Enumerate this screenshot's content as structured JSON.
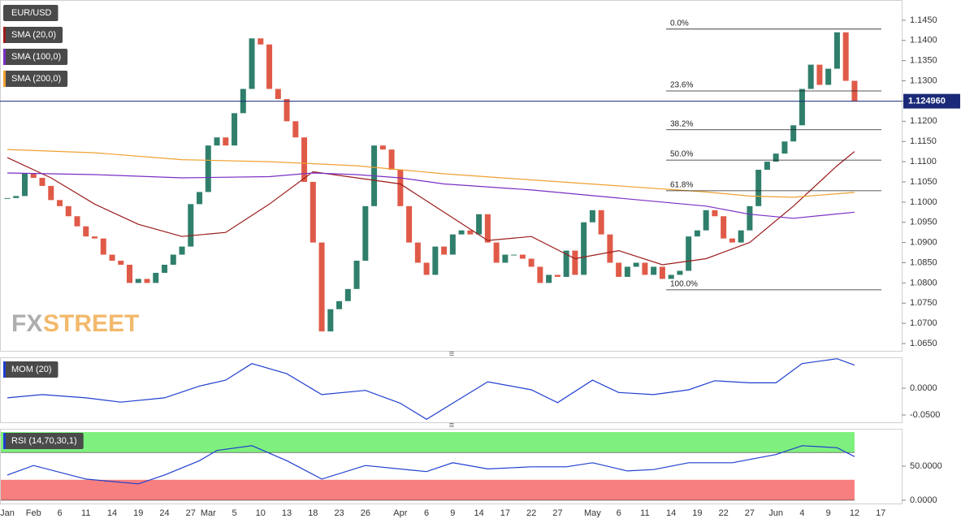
{
  "chart_data": [
    {
      "type": "candlestick",
      "categories": [
        "Jan",
        null,
        null,
        "Feb",
        null,
        null,
        "6",
        null,
        null,
        "11",
        null,
        null,
        "14",
        null,
        null,
        "19",
        null,
        null,
        "24",
        null,
        null,
        "27",
        null,
        "Mar",
        null,
        null,
        "5",
        null,
        null,
        "10",
        null,
        null,
        "13",
        null,
        null,
        "18",
        null,
        null,
        "23",
        null,
        null,
        "26",
        null,
        null,
        null,
        "Apr",
        null,
        null,
        "6",
        null,
        null,
        "9",
        null,
        null,
        "14",
        null,
        null,
        "17",
        null,
        null,
        "22",
        null,
        null,
        "27",
        null,
        null,
        null,
        "May",
        null,
        null,
        "6",
        null,
        null,
        "11",
        null,
        null,
        "14",
        null,
        null,
        "19",
        null,
        null,
        "22",
        null,
        null,
        "27",
        null,
        null,
        "Jun",
        null,
        null,
        "4",
        null,
        null,
        "9",
        null,
        null,
        "12",
        null,
        null,
        "17"
      ],
      "xlim": [
        -0.837,
        102.4
      ],
      "ylim": [
        1.0632,
        1.15
      ],
      "yticks": [
        {
          "value": 1.065,
          "label": "1.0650"
        },
        {
          "value": 1.07,
          "label": "1.0700"
        },
        {
          "value": 1.075,
          "label": "1.0750"
        },
        {
          "value": 1.08,
          "label": "1.0800"
        },
        {
          "value": 1.085,
          "label": "1.0850"
        },
        {
          "value": 1.09,
          "label": "1.0900"
        },
        {
          "value": 1.095,
          "label": "1.0950"
        },
        {
          "value": 1.1,
          "label": "1.1000"
        },
        {
          "value": 1.105,
          "label": "1.1050"
        },
        {
          "value": 1.11,
          "label": "1.1100"
        },
        {
          "value": 1.115,
          "label": "1.1150"
        },
        {
          "value": 1.12,
          "label": "1.1200"
        },
        {
          "value": 1.125,
          "label": "1.1250"
        },
        {
          "value": 1.13,
          "label": "1.1300"
        },
        {
          "value": 1.135,
          "label": "1.1350"
        },
        {
          "value": 1.14,
          "label": "1.1400"
        },
        {
          "value": 1.145,
          "label": "1.1450"
        }
      ],
      "series": [
        {
          "name": "EUR/USD",
          "up_color": "#2f7f6c",
          "down_color": "#e05a48",
          "values": [
            1.101,
            1.1015,
            1.107,
            1.106,
            1.104,
            1.1005,
            1.099,
            1.0965,
            1.094,
            1.0915,
            1.091,
            1.087,
            1.0855,
            1.0845,
            1.08,
            1.081,
            1.08,
            1.0825,
            1.0845,
            1.087,
            1.089,
            1.0995,
            1.1025,
            1.114,
            1.116,
            1.114,
            1.122,
            1.128,
            1.1405,
            1.139,
            1.128,
            1.1255,
            1.12,
            1.116,
            1.105,
            1.09,
            1.068,
            1.0735,
            1.0755,
            1.0785,
            1.0855,
            1.099,
            1.114,
            1.113,
            1.108,
            1.099,
            1.09,
            1.085,
            1.082,
            1.089,
            1.087,
            1.092,
            1.093,
            1.092,
            1.097,
            1.09,
            1.085,
            1.087,
            1.087,
            1.086,
            1.084,
            1.08,
            1.082,
            1.0815,
            1.088,
            1.082,
            1.095,
            1.098,
            1.092,
            1.085,
            1.0815,
            1.084,
            1.085,
            1.082,
            1.084,
            1.081,
            1.082,
            1.083,
            1.0915,
            1.093,
            1.098,
            1.0965,
            1.091,
            1.09,
            1.093,
            1.099,
            1.108,
            1.11,
            1.112,
            1.115,
            1.119,
            1.128,
            1.134,
            1.129,
            1.133,
            1.142,
            1.13,
            1.12496,
            null,
            null,
            null
          ]
        },
        {
          "name": "SMA (20,0)",
          "color": "#9b1c1c",
          "x": [
            0,
            5,
            10,
            15,
            20,
            25,
            30,
            35,
            40,
            45,
            50,
            55,
            60,
            65,
            70,
            75,
            80,
            85,
            90,
            95,
            97
          ],
          "values": [
            1.111,
            1.106,
            1.0995,
            1.0945,
            1.0915,
            1.0925,
            1.0995,
            1.1075,
            1.106,
            1.1045,
            1.0975,
            1.0905,
            1.0915,
            1.086,
            1.088,
            1.0845,
            1.086,
            1.09,
            1.099,
            1.109,
            1.1125
          ]
        },
        {
          "name": "SMA (100,0)",
          "color": "#7a2fc4",
          "x": [
            0,
            10,
            20,
            30,
            35,
            40,
            45,
            50,
            60,
            70,
            80,
            85,
            90,
            97
          ],
          "values": [
            1.1072,
            1.1068,
            1.106,
            1.1063,
            1.1072,
            1.1068,
            1.106,
            1.1045,
            1.103,
            1.101,
            1.099,
            1.097,
            1.096,
            1.0975
          ]
        },
        {
          "name": "SMA (200,0)",
          "color": "#f0a030",
          "x": [
            0,
            10,
            20,
            30,
            40,
            50,
            60,
            70,
            80,
            85,
            90,
            97
          ],
          "values": [
            1.113,
            1.1122,
            1.1105,
            1.11,
            1.109,
            1.107,
            1.1055,
            1.104,
            1.1025,
            1.1015,
            1.1012,
            1.1024
          ]
        }
      ],
      "fib_levels": [
        {
          "value": 1.1428,
          "label": "0.0%"
        },
        {
          "value": 1.1275,
          "label": "23.6%"
        },
        {
          "value": 1.1179,
          "label": "38.2%"
        },
        {
          "value": 1.1104,
          "label": "50.0%"
        },
        {
          "value": 1.1028,
          "label": "61.8%"
        },
        {
          "value": 1.0783,
          "label": "100.0%"
        }
      ],
      "last_price": {
        "value": 1.12496,
        "label": "1.124960",
        "color": "#1b2a78"
      }
    },
    {
      "type": "line",
      "ylim": [
        -0.0636,
        0.0576
      ],
      "yticks": [
        {
          "value": 0,
          "label": "0.0000"
        },
        {
          "value": -0.05,
          "label": "-0.0500"
        }
      ],
      "series": [
        {
          "name": "MOM (20)",
          "color": "#1f3fcf",
          "x": [
            0,
            4,
            9,
            13,
            18,
            22,
            25,
            28,
            32,
            36,
            41,
            45,
            48,
            51,
            55,
            60,
            63,
            67,
            70,
            74,
            78,
            81,
            85,
            88,
            91,
            95,
            97
          ],
          "values": [
            -0.018,
            -0.012,
            -0.018,
            -0.026,
            -0.018,
            0.004,
            0.015,
            0.046,
            0.027,
            -0.012,
            -0.004,
            -0.028,
            -0.058,
            -0.028,
            0.012,
            -0.003,
            -0.027,
            0.015,
            -0.008,
            -0.012,
            -0.003,
            0.014,
            0.01,
            0.01,
            0.046,
            0.055,
            0.043
          ]
        }
      ]
    },
    {
      "type": "line",
      "ylim": [
        -4.8,
        104.8
      ],
      "yticks": [
        {
          "value": 50,
          "label": "50.0000"
        },
        {
          "value": 0,
          "label": "0.0000"
        }
      ],
      "bands": [
        {
          "from": 70,
          "to": 100,
          "color": "#7ef07e"
        },
        {
          "from": 0,
          "to": 30,
          "color": "#f77f7f"
        }
      ],
      "series": [
        {
          "name": "RSI (14,70,30,1)",
          "color": "#1f3fcf",
          "x": [
            0,
            3,
            9,
            15,
            18,
            22,
            24,
            28,
            32,
            36,
            41,
            48,
            51,
            55,
            60,
            64,
            67,
            71,
            74,
            78,
            83,
            88,
            91,
            95,
            97
          ],
          "values": [
            37,
            51,
            31,
            24,
            37,
            58,
            73,
            80,
            58,
            31,
            51,
            42,
            55,
            46,
            49,
            49,
            55,
            43,
            45,
            55,
            55,
            67,
            80,
            77,
            64
          ]
        }
      ]
    }
  ],
  "watermark": {
    "fx": "FX",
    "street": "STREET"
  }
}
